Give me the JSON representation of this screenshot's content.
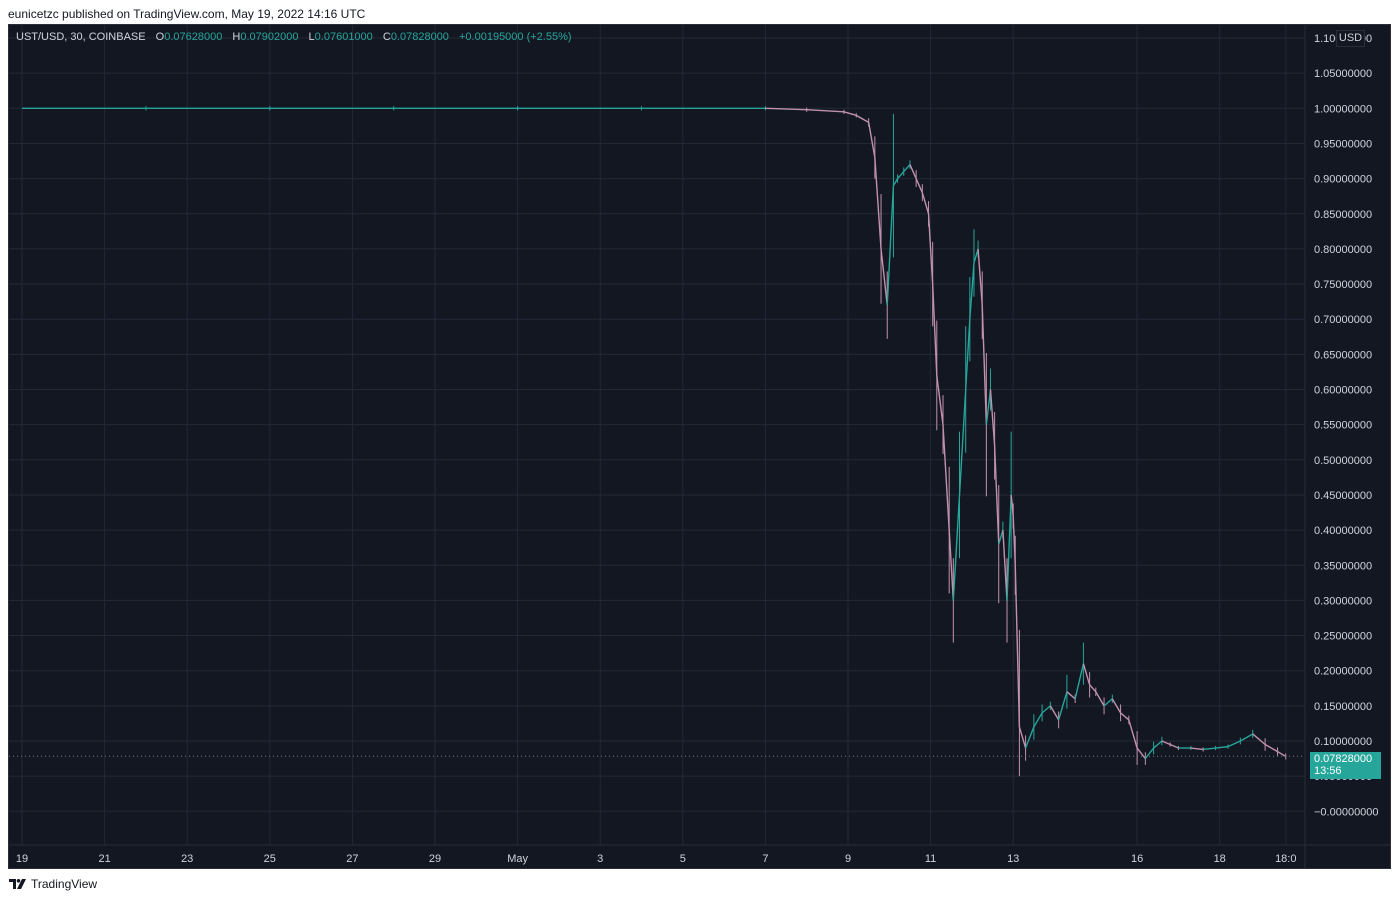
{
  "attribution": "eunicetzc published on TradingView.com, May 19, 2022 14:16 UTC",
  "legend": {
    "symbol": "UST/USD, 30, COINBASE",
    "o_label": "O",
    "o_value": "0.07628000",
    "h_label": "H",
    "h_value": "0.07902000",
    "l_label": "L",
    "l_value": "0.07601000",
    "c_label": "C",
    "c_value": "0.07828000",
    "change": "+0.00195000 (+2.55%)"
  },
  "currency": "USD",
  "last_price": {
    "value": "0.07828000",
    "countdown": "13:56"
  },
  "footer": {
    "brand": "TradingView",
    "logo_icon": "tradingview-logo-icon"
  },
  "colors": {
    "background": "#131722",
    "up": "#26a69a",
    "down": "#c292ad",
    "grid": "#232837",
    "axis_text": "#d1d4dc"
  },
  "chart_data": {
    "type": "line",
    "title": "UST/USD, 30, COINBASE",
    "xlabel": "",
    "ylabel": "",
    "ylim": [
      -0.02,
      1.1
    ],
    "grid": true,
    "y_ticks": [
      1.1,
      1.05,
      1.0,
      0.95,
      0.9,
      0.85,
      0.8,
      0.75,
      0.7,
      0.65,
      0.6,
      0.55,
      0.5,
      0.45,
      0.4,
      0.35,
      0.3,
      0.25,
      0.2,
      0.15,
      0.1,
      0.05,
      0.0
    ],
    "y_tick_labels": [
      "1.10000000",
      "1.05000000",
      "1.00000000",
      "0.95000000",
      "0.90000000",
      "0.85000000",
      "0.80000000",
      "0.75000000",
      "0.70000000",
      "0.65000000",
      "0.60000000",
      "0.55000000",
      "0.50000000",
      "0.45000000",
      "0.40000000",
      "0.35000000",
      "0.30000000",
      "0.25000000",
      "0.20000000",
      "0.15000000",
      "0.10000000",
      "0.05000000",
      "−0.00000000"
    ],
    "x_ticks": [
      {
        "day": 19,
        "label": "19"
      },
      {
        "day": 21,
        "label": "21"
      },
      {
        "day": 23,
        "label": "23"
      },
      {
        "day": 25,
        "label": "25"
      },
      {
        "day": 27,
        "label": "27"
      },
      {
        "day": 29,
        "label": "29"
      },
      {
        "day": 31,
        "label": "May"
      },
      {
        "day": 33,
        "label": "3"
      },
      {
        "day": 35,
        "label": "5"
      },
      {
        "day": 37,
        "label": "7"
      },
      {
        "day": 39,
        "label": "9"
      },
      {
        "day": 41,
        "label": "11"
      },
      {
        "day": 43,
        "label": "13"
      },
      {
        "day": 46,
        "label": "16"
      },
      {
        "day": 48,
        "label": "18"
      },
      {
        "day": 49.6,
        "label": "18:0"
      }
    ],
    "series": [
      {
        "values_x_day": [
          19.0,
          22.0,
          25.0,
          28.0,
          31.0,
          34.0,
          37.0,
          38.0,
          38.9,
          39.2,
          39.5,
          39.65,
          39.8,
          39.95,
          40.1,
          40.2,
          40.35,
          40.5,
          40.65,
          40.8,
          40.95,
          41.05,
          41.15,
          41.3,
          41.45,
          41.55,
          41.7,
          41.85,
          41.95,
          42.05,
          42.15,
          42.25,
          42.35,
          42.45,
          42.55,
          42.65,
          42.75,
          42.85,
          42.95,
          43.0,
          43.05,
          43.15,
          43.3,
          43.5,
          43.7,
          43.9,
          44.1,
          44.3,
          44.5,
          44.7,
          44.85,
          45.0,
          45.2,
          45.4,
          45.6,
          45.8,
          46.0,
          46.2,
          46.4,
          46.6,
          46.8,
          47.0,
          47.3,
          47.6,
          47.9,
          48.2,
          48.5,
          48.8,
          49.1,
          49.4,
          49.6
        ],
        "values_y": [
          1.0,
          1.0,
          1.0,
          1.0,
          1.0,
          1.0,
          1.0,
          0.998,
          0.995,
          0.99,
          0.98,
          0.93,
          0.8,
          0.72,
          0.89,
          0.9,
          0.91,
          0.92,
          0.9,
          0.88,
          0.85,
          0.75,
          0.62,
          0.55,
          0.4,
          0.3,
          0.45,
          0.6,
          0.7,
          0.78,
          0.8,
          0.72,
          0.55,
          0.6,
          0.52,
          0.38,
          0.4,
          0.3,
          0.45,
          0.42,
          0.35,
          0.12,
          0.09,
          0.12,
          0.14,
          0.15,
          0.13,
          0.17,
          0.16,
          0.21,
          0.18,
          0.17,
          0.15,
          0.16,
          0.14,
          0.13,
          0.09,
          0.075,
          0.09,
          0.1,
          0.095,
          0.09,
          0.09,
          0.088,
          0.09,
          0.092,
          0.1,
          0.11,
          0.095,
          0.085,
          0.078
        ]
      }
    ],
    "last_value": 0.07828
  }
}
